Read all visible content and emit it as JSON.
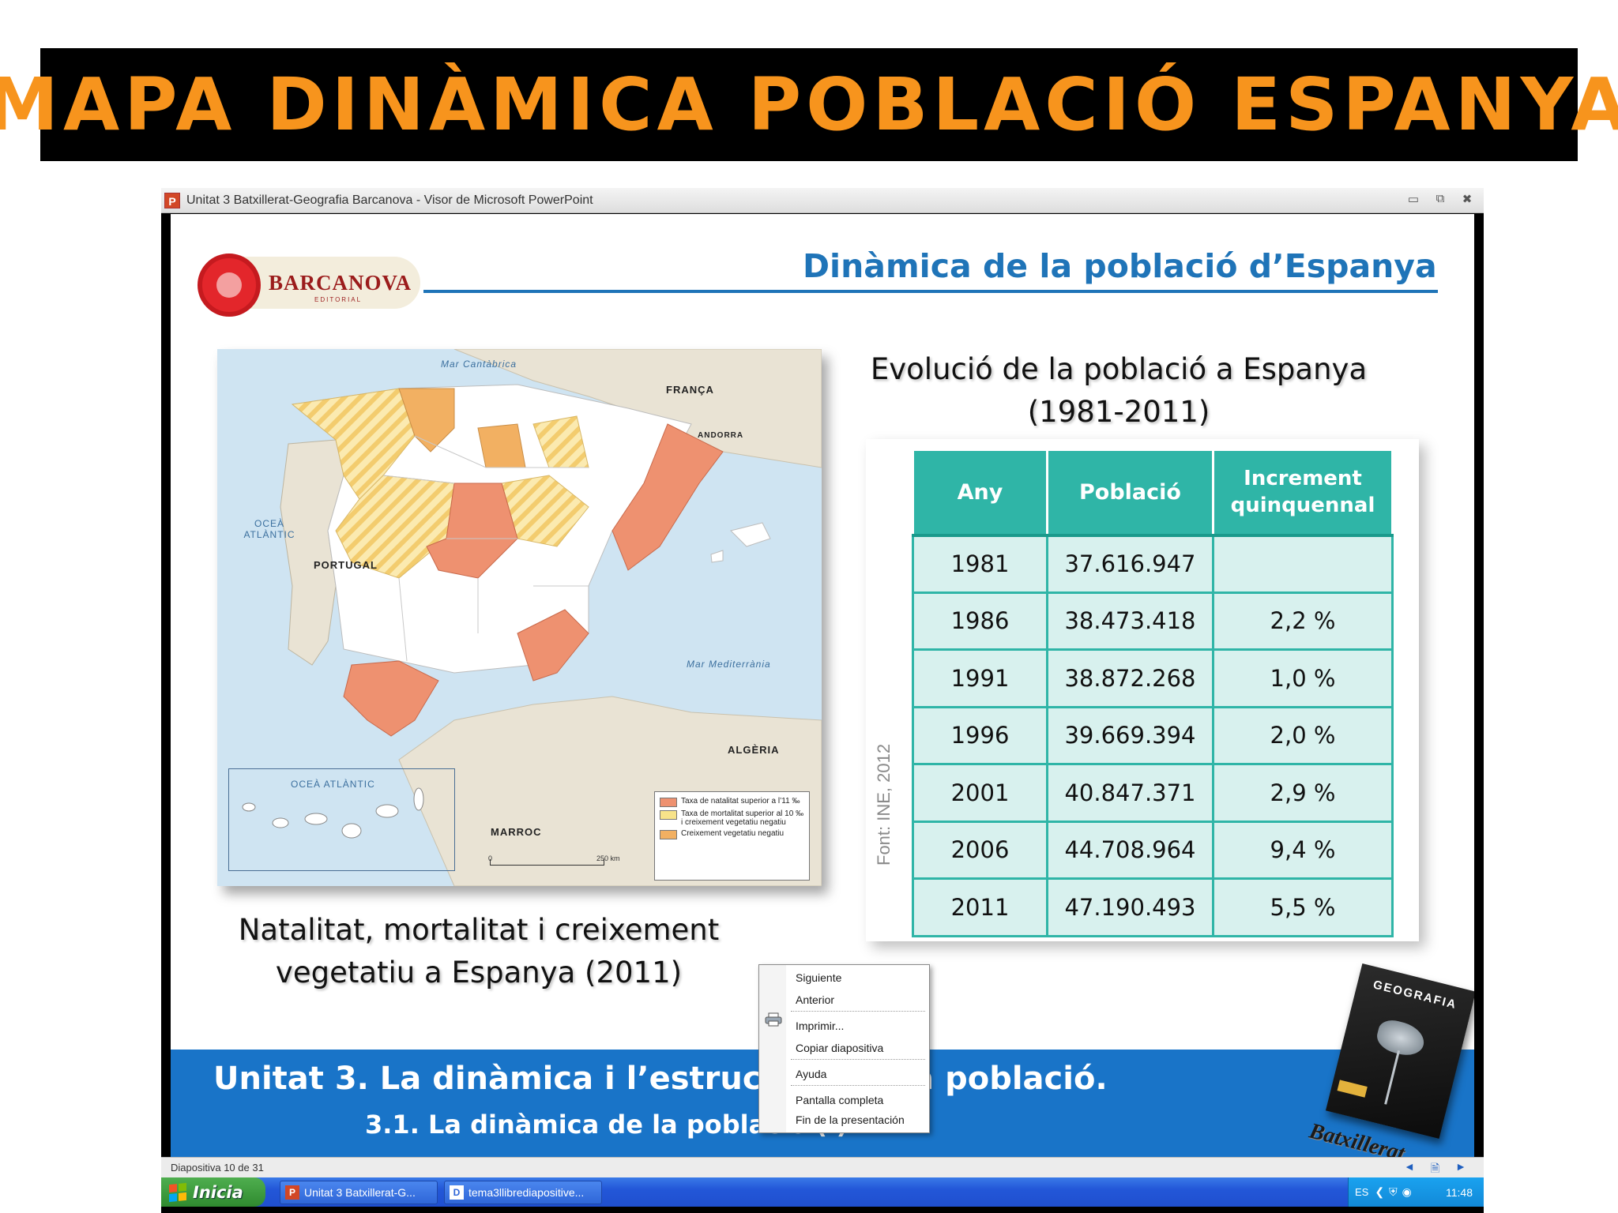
{
  "banner": {
    "title": "MAPA DINÀMICA POBLACIÓ ESPANYA"
  },
  "window": {
    "title": "Unitat 3 Batxillerat-Geografia Barcanova - Visor de Microsoft PowerPoint",
    "app_icon": "P",
    "controls": [
      "minimize-icon",
      "restore-icon",
      "close-icon"
    ]
  },
  "slide": {
    "logo_text": "BARCANOVA",
    "logo_sub": "EDITORIAL",
    "title": "Dinàmica de la població d’Espanya",
    "map": {
      "labels": {
        "france": "FRANÇA",
        "andorra": "ANDORRA",
        "portugal": "PORTUGAL",
        "algeria": "ALGÈRIA",
        "morocco": "MARROC"
      },
      "seas": {
        "cantabrian": "Mar Cantàbrica",
        "atlantic": "OCEÀ ATLÀNTIC",
        "atlantic_canary": "OCEÀ ATLÀNTIC",
        "mediterranean": "Mar Mediterrània"
      },
      "legend": [
        {
          "text": "Taxa de natalitat superior a l’11 ‰",
          "color": "#ee9170"
        },
        {
          "text": "Taxa de mortalitat superior al 10 ‰ i creixement vegetatiu negatiu",
          "color": "#f7e38a"
        },
        {
          "text": "Creixement vegetatiu negatiu",
          "color": "#f2b062"
        }
      ],
      "scale_start": "0",
      "scale_end": "250 km",
      "caption_line1": "Natalitat, mortalitat i creixement",
      "caption_line2": "vegetatiu a Espanya (2011)"
    },
    "table": {
      "caption_line1": "Evolució de la població a Espanya",
      "caption_line2": "(1981-2011)",
      "source": "Font: INE, 2012",
      "headers": [
        "Any",
        "Població",
        "Increment quinquennal"
      ],
      "rows": [
        [
          "1981",
          "37.616.947",
          ""
        ],
        [
          "1986",
          "38.473.418",
          "2,2 %"
        ],
        [
          "1991",
          "38.872.268",
          "1,0 %"
        ],
        [
          "1996",
          "39.669.394",
          "2,0 %"
        ],
        [
          "2001",
          "40.847.371",
          "2,9 %"
        ],
        [
          "2006",
          "44.708.964",
          "9,4 %"
        ],
        [
          "2011",
          "47.190.493",
          "5,5 %"
        ]
      ]
    },
    "band": {
      "line1": "Unitat 3. La dinàmica i l’estructura de la població.",
      "line2": "3.1. La dinàmica de la població (I)"
    },
    "book": {
      "title": "GEOGRAFIA",
      "subtitle": "Batxillerat"
    }
  },
  "context_menu": {
    "items": [
      "Siguiente",
      "Anterior",
      "Imprimir...",
      "Copiar diapositiva",
      "Ayuda",
      "Pantalla completa",
      "Fin de la presentación"
    ]
  },
  "status_bar": {
    "text": "Diapositiva 10 de 31",
    "icons": [
      "previous-icon",
      "notes-icon",
      "next-icon"
    ]
  },
  "taskbar": {
    "start_label": "Inicia",
    "tasks": [
      {
        "label": "Unitat 3 Batxillerat-G...",
        "icon": "P"
      },
      {
        "label": "tema3llibrediapositive...",
        "icon": "D"
      }
    ],
    "tray_lang": "ES",
    "clock": "11:48"
  }
}
